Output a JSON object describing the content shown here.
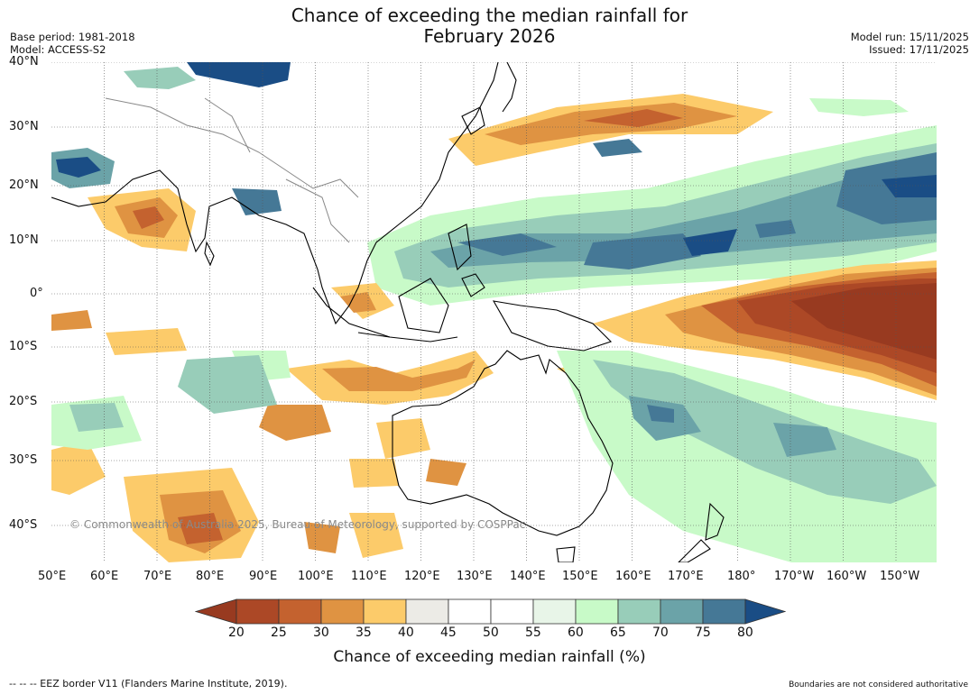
{
  "title": {
    "line1": "Chance of exceeding the median rainfall for",
    "line2": "February 2026"
  },
  "meta": {
    "base_period": "Base period: 1981-2018",
    "model": "Model: ACCESS-S2",
    "model_run": "Model run: 15/11/2025",
    "issued": "Issued: 17/11/2025"
  },
  "map": {
    "lat_labels": [
      "40°N",
      "30°N",
      "20°N",
      "10°N",
      "0°",
      "10°S",
      "20°S",
      "30°S",
      "40°S"
    ],
    "lon_labels": [
      "50°E",
      "60°E",
      "70°E",
      "80°E",
      "90°E",
      "100°E",
      "110°E",
      "120°E",
      "130°E",
      "140°E",
      "150°E",
      "160°E",
      "170°E",
      "180°",
      "170°W",
      "160°W",
      "150°W"
    ],
    "copyright": "© Commonwealth of Australia 2025, Bureau of Meteorology, supported by COSPPac",
    "regions": [
      {
        "name": "central-pacific-equatorial-dry",
        "value": 20,
        "color": "#9c3d1f"
      },
      {
        "name": "west-pacific-wet-band",
        "value": 75,
        "color": "#3f7aa2"
      },
      {
        "name": "north-pacific-dry-band",
        "value": 30,
        "color": "#d5833e"
      },
      {
        "name": "india-dry",
        "value": 35,
        "color": "#f1ad52"
      },
      {
        "name": "north-australia-dry",
        "value": 35,
        "color": "#f1ad52"
      },
      {
        "name": "southern-indian-ocean-dry",
        "value": 35,
        "color": "#f1ad52"
      },
      {
        "name": "south-pacific-wet",
        "value": 70,
        "color": "#6aa6a4"
      },
      {
        "name": "northeast-pacific-wet",
        "value": 75,
        "color": "#3f7aa2"
      },
      {
        "name": "tibet-wet",
        "value": 80,
        "color": "#1f4f82"
      }
    ]
  },
  "colorbar": {
    "title": "Chance of exceeding median rainfall (%)",
    "ticks": [
      "20",
      "25",
      "30",
      "35",
      "40",
      "45",
      "50",
      "55",
      "60",
      "65",
      "70",
      "75",
      "80"
    ],
    "colors": {
      "below_20": "#983a20",
      "20_25": "#ac4826",
      "25_30": "#c4622f",
      "30_35": "#df9342",
      "35_40": "#fccb6a",
      "40_45": "#ecebe6",
      "45_50": "#ffffff",
      "50_55": "#ffffff",
      "55_60": "#e8f5e8",
      "60_65": "#c8fac8",
      "65_70": "#98cdb9",
      "70_75": "#6ba3a8",
      "75_80": "#457896",
      "above_80": "#1a4d85"
    }
  },
  "footer": {
    "eez": "--  --  -- EEZ border V11 (Flanders Marine Institute, 2019).",
    "boundaries": "Boundaries are not considered authoritative"
  }
}
